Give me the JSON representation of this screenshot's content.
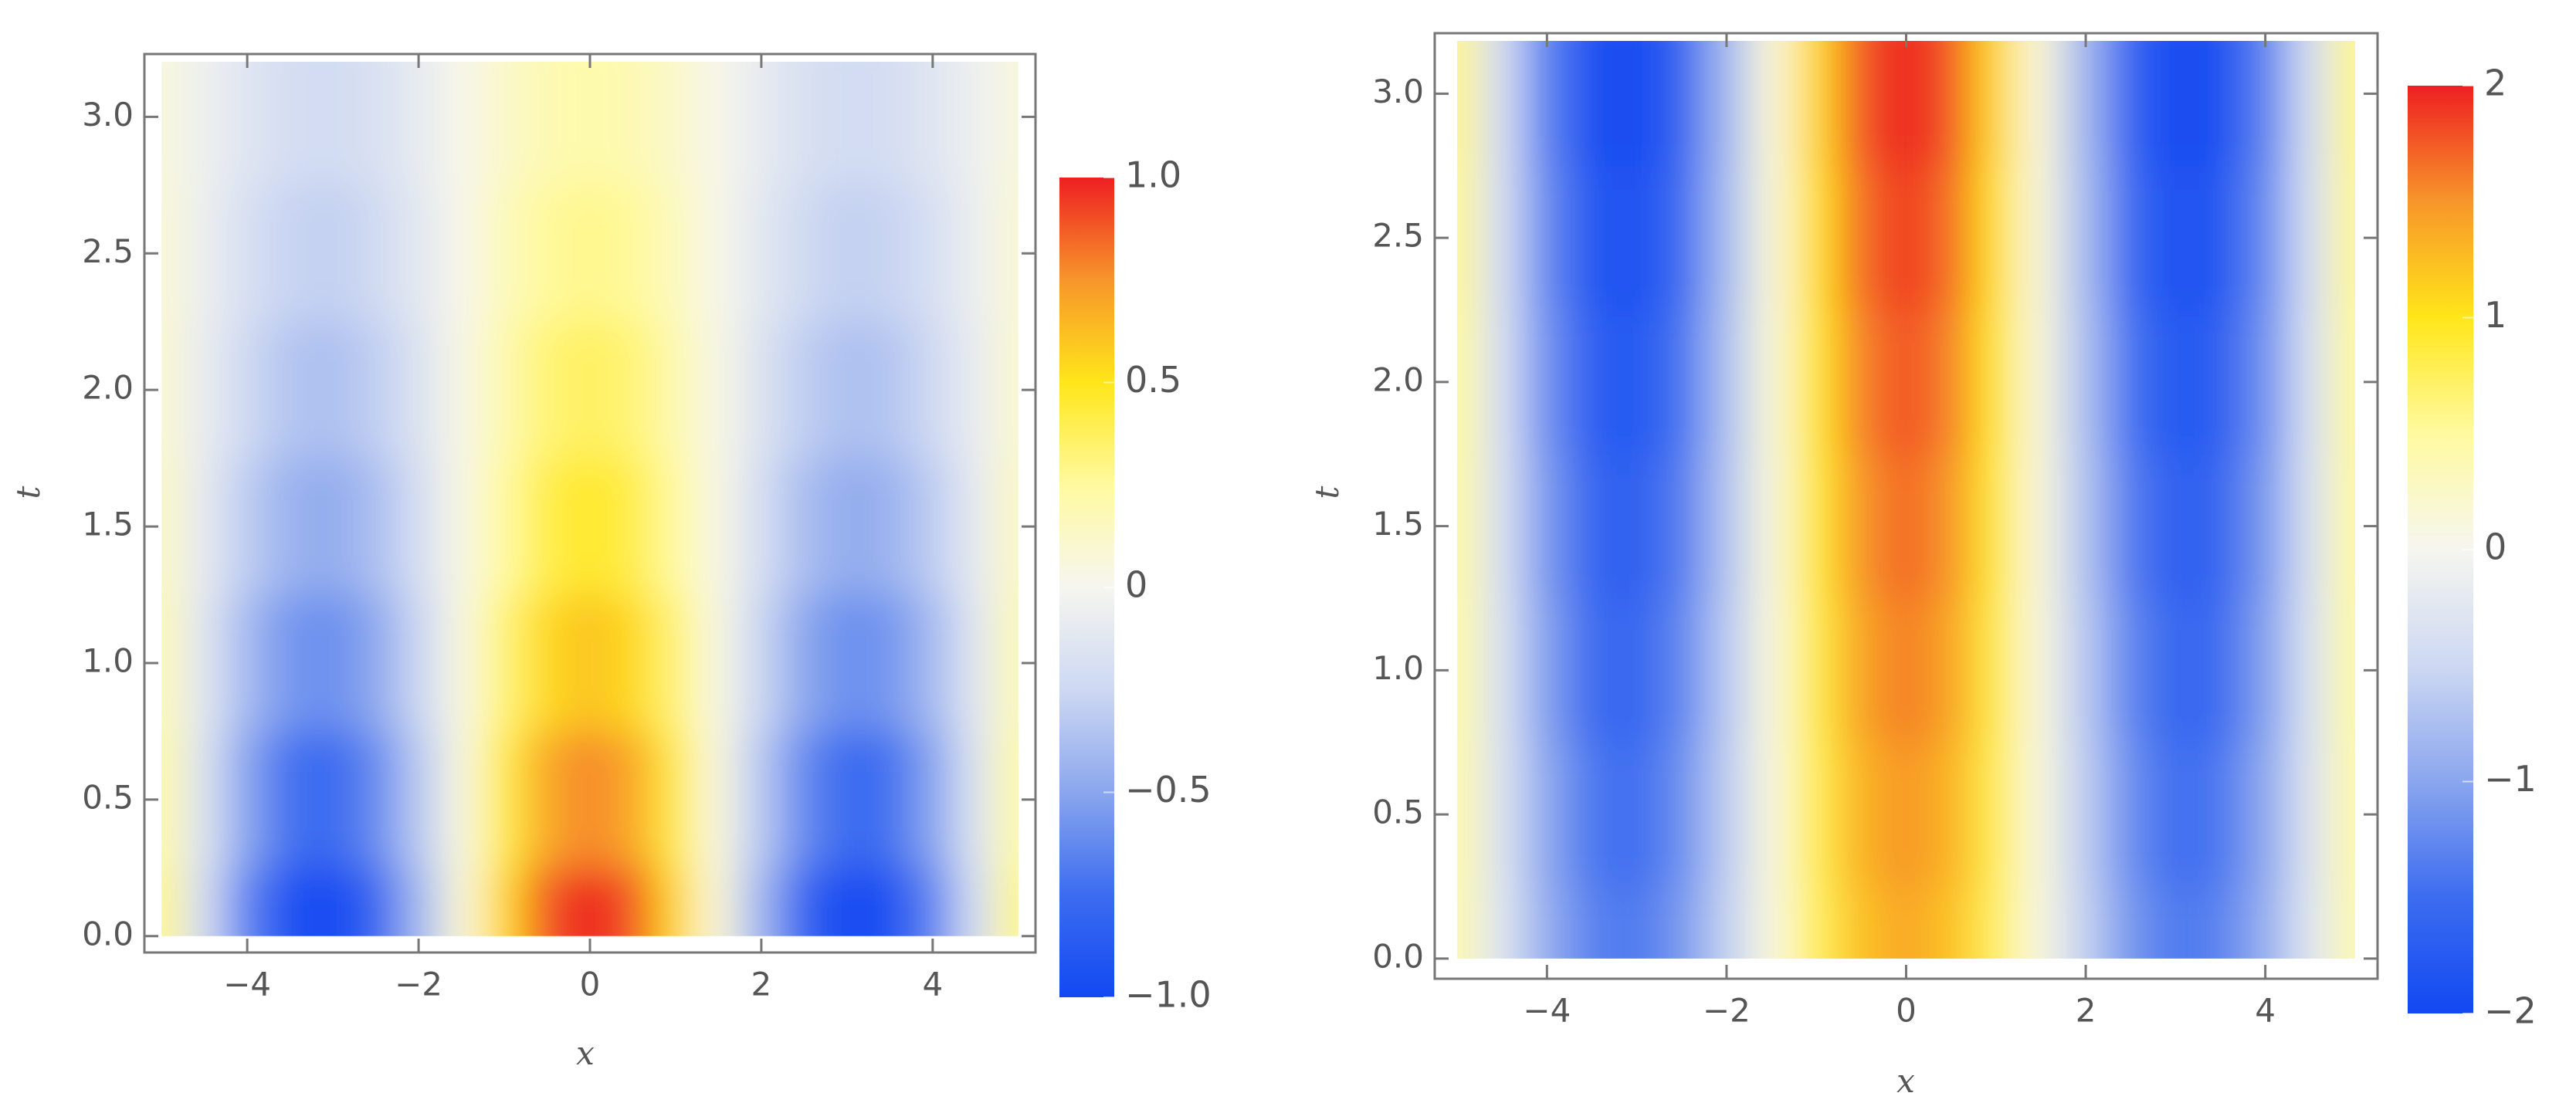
{
  "chart_data": [
    {
      "type": "heatmap",
      "xlabel": "x",
      "ylabel": "t",
      "x": [
        -5,
        -4.5,
        -4,
        -3.5,
        -3,
        -2.5,
        -2,
        -1.5,
        -1,
        -0.5,
        0,
        0.5,
        1,
        1.5,
        2,
        2.5,
        3,
        3.5,
        4,
        4.5,
        5
      ],
      "y": [
        0,
        0.5,
        1,
        1.5,
        2,
        2.5,
        3
      ],
      "z": [
        [
          0.28,
          -0.21,
          -0.65,
          -0.94,
          -0.99,
          -0.8,
          -0.42,
          0.07,
          0.54,
          0.88,
          1,
          0.88,
          0.54,
          0.07,
          -0.42,
          -0.8,
          -0.99,
          -0.94,
          -0.65,
          -0.21,
          0.28
        ],
        [
          0.22,
          -0.16,
          -0.51,
          -0.73,
          -0.77,
          -0.62,
          -0.33,
          0.05,
          0.42,
          0.69,
          0.78,
          0.69,
          0.42,
          0.05,
          -0.33,
          -0.62,
          -0.77,
          -0.73,
          -0.51,
          -0.16,
          0.22
        ],
        [
          0.17,
          -0.13,
          -0.4,
          -0.57,
          -0.6,
          -0.49,
          -0.26,
          0.04,
          0.33,
          0.54,
          0.61,
          0.54,
          0.33,
          0.04,
          -0.26,
          -0.49,
          -0.6,
          -0.57,
          -0.4,
          -0.13,
          0.17
        ],
        [
          0.13,
          -0.1,
          -0.31,
          -0.44,
          -0.47,
          -0.38,
          -0.2,
          0.03,
          0.25,
          0.41,
          0.47,
          0.41,
          0.25,
          0.03,
          -0.2,
          -0.38,
          -0.47,
          -0.44,
          -0.31,
          -0.1,
          0.13
        ],
        [
          0.1,
          -0.08,
          -0.24,
          -0.35,
          -0.37,
          -0.3,
          -0.16,
          0.03,
          0.2,
          0.33,
          0.37,
          0.33,
          0.2,
          0.03,
          -0.16,
          -0.3,
          -0.37,
          -0.35,
          -0.24,
          -0.08,
          0.1
        ],
        [
          0.08,
          -0.06,
          -0.19,
          -0.27,
          -0.29,
          -0.23,
          -0.12,
          0.02,
          0.16,
          0.26,
          0.29,
          0.26,
          0.16,
          0.02,
          -0.12,
          -0.23,
          -0.29,
          -0.27,
          -0.19,
          -0.06,
          0.08
        ],
        [
          0.06,
          -0.05,
          -0.14,
          -0.21,
          -0.22,
          -0.18,
          -0.09,
          0.02,
          0.12,
          0.19,
          0.22,
          0.19,
          0.12,
          0.02,
          -0.09,
          -0.18,
          -0.22,
          -0.21,
          -0.14,
          -0.05,
          0.06
        ]
      ],
      "xlim": [
        -5.2,
        5.2
      ],
      "ylim": [
        -0.06,
        3.23
      ],
      "xticks": [
        {
          "value": -4,
          "label": "−4"
        },
        {
          "value": -2,
          "label": "−2"
        },
        0,
        2,
        4
      ],
      "yticks": [
        {
          "value": 0,
          "label": "0.0"
        },
        {
          "value": 0.5,
          "label": "0.5"
        },
        {
          "value": 1,
          "label": "1.0"
        },
        {
          "value": 1.5,
          "label": "1.5"
        },
        {
          "value": 2,
          "label": "2.0"
        },
        {
          "value": 2.5,
          "label": "2.5"
        },
        {
          "value": 3,
          "label": "3.0"
        }
      ],
      "zlim": [
        -1,
        1
      ],
      "zticks": [
        {
          "value": 1,
          "label": "1.0"
        },
        {
          "value": 0.5,
          "label": "0.5"
        },
        0,
        {
          "value": -0.5,
          "label": "−0.5"
        },
        {
          "value": -1,
          "label": "−1.0"
        }
      ],
      "colors": [
        "#1248f2",
        "#3c6cf0",
        "#8aa6ee",
        "#cdd8f2",
        "#f6f6f0",
        "#fffaa0",
        "#ffe61a",
        "#f7962a",
        "#ee1f22"
      ]
    },
    {
      "type": "heatmap",
      "xlabel": "x",
      "ylabel": "t",
      "x": [
        -5,
        -4.5,
        -4,
        -3.5,
        -3,
        -2.5,
        -2,
        -1.5,
        -1,
        -0.5,
        0,
        0.5,
        1,
        1.5,
        2,
        2.5,
        3,
        3.5,
        4,
        4.5,
        5
      ],
      "y": [
        0,
        0.5,
        1,
        1.5,
        2,
        2.5,
        3
      ],
      "z": [
        [
          0.4,
          -0.29,
          -0.92,
          -1.31,
          -1.39,
          -1.12,
          -0.58,
          0.1,
          0.76,
          1.23,
          1.4,
          1.23,
          0.76,
          0.1,
          -0.58,
          -1.12,
          -1.39,
          -1.31,
          -0.92,
          -0.29,
          0.4
        ],
        [
          0.43,
          -0.32,
          -0.98,
          -1.4,
          -1.49,
          -1.2,
          -0.62,
          0.11,
          0.81,
          1.32,
          1.5,
          1.32,
          0.81,
          0.11,
          -0.62,
          -1.2,
          -1.49,
          -1.4,
          -0.98,
          -0.32,
          0.43
        ],
        [
          0.46,
          -0.34,
          -1.05,
          -1.5,
          -1.58,
          -1.28,
          -0.66,
          0.11,
          0.86,
          1.41,
          1.6,
          1.41,
          0.86,
          0.11,
          -0.66,
          -1.28,
          -1.58,
          -1.5,
          -1.05,
          -0.34,
          0.46
        ],
        [
          0.48,
          -0.36,
          -1.11,
          -1.59,
          -1.68,
          -1.36,
          -0.71,
          0.12,
          0.92,
          1.5,
          1.7,
          1.5,
          0.92,
          0.12,
          -0.71,
          -1.36,
          -1.68,
          -1.59,
          -1.11,
          -0.36,
          0.48
        ],
        [
          0.51,
          -0.38,
          -1.18,
          -1.68,
          -1.78,
          -1.44,
          -0.75,
          0.13,
          0.97,
          1.58,
          1.8,
          1.58,
          0.97,
          0.13,
          -0.75,
          -1.44,
          -1.78,
          -1.68,
          -1.18,
          -0.38,
          0.51
        ],
        [
          0.54,
          -0.4,
          -1.24,
          -1.78,
          -1.88,
          -1.52,
          -0.79,
          0.13,
          1.03,
          1.67,
          1.9,
          1.67,
          1.03,
          0.13,
          -0.79,
          -1.52,
          -1.88,
          -1.78,
          -1.24,
          -0.4,
          0.54
        ],
        [
          0.57,
          -0.42,
          -1.31,
          -1.87,
          -1.98,
          -1.6,
          -0.83,
          0.14,
          1.08,
          1.76,
          2,
          1.76,
          1.08,
          0.14,
          -0.83,
          -1.6,
          -1.98,
          -1.87,
          -1.31,
          -0.42,
          0.57
        ]
      ],
      "xlim": [
        -5.25,
        5.25
      ],
      "ylim": [
        -0.07,
        3.21
      ],
      "xticks": [
        {
          "value": -4,
          "label": "−4"
        },
        {
          "value": -2,
          "label": "−2"
        },
        0,
        2,
        4
      ],
      "yticks": [
        {
          "value": 0,
          "label": "0.0"
        },
        {
          "value": 0.5,
          "label": "0.5"
        },
        {
          "value": 1,
          "label": "1.0"
        },
        {
          "value": 1.5,
          "label": "1.5"
        },
        {
          "value": 2,
          "label": "2.0"
        },
        {
          "value": 2.5,
          "label": "2.5"
        },
        {
          "value": 3,
          "label": "3.0"
        }
      ],
      "zlim": [
        -2,
        2
      ],
      "zticks": [
        2,
        1,
        0,
        {
          "value": -1,
          "label": "−1"
        },
        {
          "value": -2,
          "label": "−2"
        }
      ],
      "colors": [
        "#1248f2",
        "#3c6cf0",
        "#8aa6ee",
        "#cdd8f2",
        "#f6f6f0",
        "#fffaa0",
        "#ffe61a",
        "#f7962a",
        "#ee1f22"
      ]
    }
  ]
}
